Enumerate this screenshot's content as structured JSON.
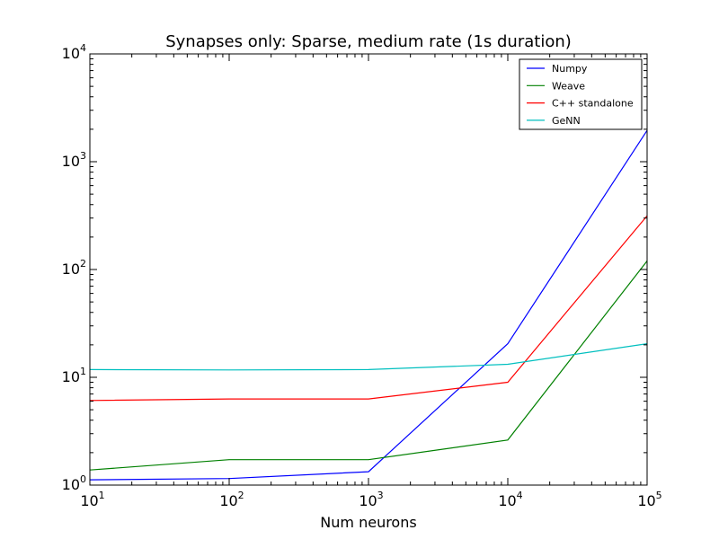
{
  "chart_data": {
    "type": "line",
    "title": "Synapses only: Sparse, medium rate (1s duration)",
    "xlabel": "Num neurons",
    "ylabel": "",
    "xscale": "log",
    "yscale": "log",
    "xlim": [
      10,
      100000
    ],
    "ylim": [
      1,
      10000
    ],
    "x": [
      10,
      100,
      1000,
      10000,
      100000
    ],
    "x_ticks": [
      {
        "base": "10",
        "exp": "1"
      },
      {
        "base": "10",
        "exp": "2"
      },
      {
        "base": "10",
        "exp": "3"
      },
      {
        "base": "10",
        "exp": "4"
      },
      {
        "base": "10",
        "exp": "5"
      }
    ],
    "y_ticks": [
      {
        "base": "10",
        "exp": "0"
      },
      {
        "base": "10",
        "exp": "1"
      },
      {
        "base": "10",
        "exp": "2"
      },
      {
        "base": "10",
        "exp": "3"
      },
      {
        "base": "10",
        "exp": "4"
      }
    ],
    "grid": false,
    "legend_position": "top-right",
    "series": [
      {
        "name": "Numpy",
        "color": "#0000ff",
        "values": [
          1.12,
          1.15,
          1.33,
          20.5,
          1950
        ]
      },
      {
        "name": "Weave",
        "color": "#008000",
        "values": [
          1.38,
          1.72,
          1.72,
          2.62,
          120
        ]
      },
      {
        "name": "C++ standalone",
        "color": "#ff0000",
        "values": [
          6.1,
          6.3,
          6.3,
          9.0,
          315
        ]
      },
      {
        "name": "GeNN",
        "color": "#00bfbf",
        "values": [
          11.8,
          11.7,
          11.8,
          13.2,
          20.5
        ]
      }
    ]
  }
}
